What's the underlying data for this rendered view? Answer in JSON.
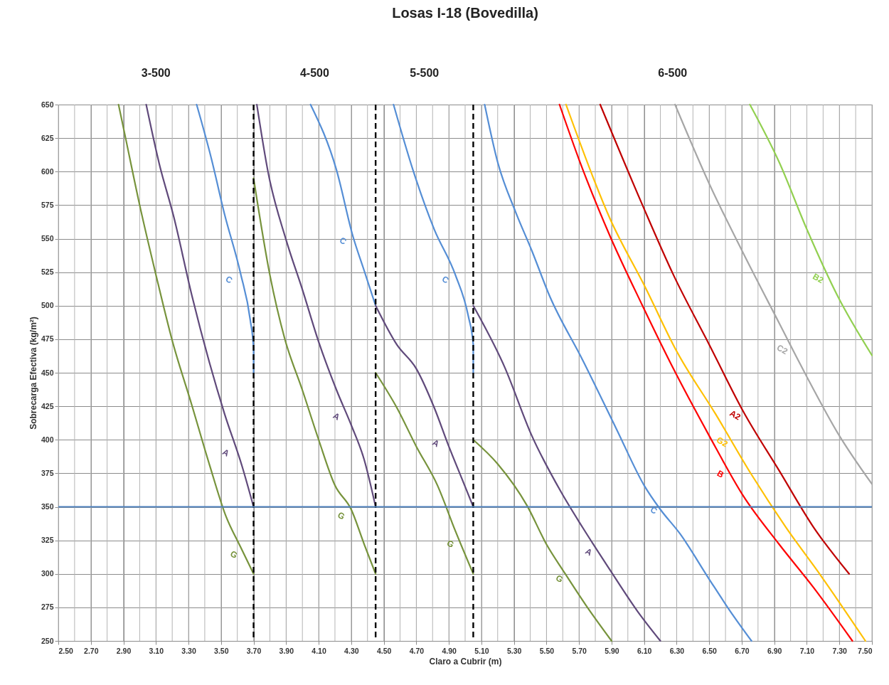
{
  "chart_data": {
    "type": "line",
    "title": "Losas I-18 (Bovedilla)",
    "xlabel": "Claro a Cubrir (m)",
    "ylabel": "Sobrecarga Efectiva (kg/m²)",
    "xlim": [
      2.5,
      7.5
    ],
    "ylim": [
      250,
      650
    ],
    "xticks": [
      {
        "value": 2.5,
        "label": "2.50"
      },
      {
        "value": 2.6,
        "label": null
      },
      {
        "value": 2.7,
        "label": "2.70"
      },
      {
        "value": 2.8,
        "label": null
      },
      {
        "value": 2.9,
        "label": "2.90"
      },
      {
        "value": 3.0,
        "label": null
      },
      {
        "value": 3.1,
        "label": "3.10"
      },
      {
        "value": 3.2,
        "label": null
      },
      {
        "value": 3.3,
        "label": "3.30"
      },
      {
        "value": 3.4,
        "label": null
      },
      {
        "value": 3.5,
        "label": "3.50"
      },
      {
        "value": 3.6,
        "label": null
      },
      {
        "value": 3.7,
        "label": "3.70"
      },
      {
        "value": 3.8,
        "label": null
      },
      {
        "value": 3.9,
        "label": "3.90"
      },
      {
        "value": 4.0,
        "label": null
      },
      {
        "value": 4.1,
        "label": "4.10"
      },
      {
        "value": 4.2,
        "label": null
      },
      {
        "value": 4.3,
        "label": "4.30"
      },
      {
        "value": 4.4,
        "label": null
      },
      {
        "value": 4.5,
        "label": "4.50"
      },
      {
        "value": 4.6,
        "label": null
      },
      {
        "value": 4.7,
        "label": "4.70"
      },
      {
        "value": 4.8,
        "label": null
      },
      {
        "value": 4.9,
        "label": "4.90"
      },
      {
        "value": 5.0,
        "label": null
      },
      {
        "value": 5.1,
        "label": "5.10"
      },
      {
        "value": 5.2,
        "label": null
      },
      {
        "value": 5.3,
        "label": "5.30"
      },
      {
        "value": 5.4,
        "label": null
      },
      {
        "value": 5.5,
        "label": "5.50"
      },
      {
        "value": 5.6,
        "label": null
      },
      {
        "value": 5.7,
        "label": "5.70"
      },
      {
        "value": 5.8,
        "label": null
      },
      {
        "value": 5.9,
        "label": "5.90"
      },
      {
        "value": 6.0,
        "label": null
      },
      {
        "value": 6.1,
        "label": "6.10"
      },
      {
        "value": 6.2,
        "label": null
      },
      {
        "value": 6.3,
        "label": "6.30"
      },
      {
        "value": 6.4,
        "label": null
      },
      {
        "value": 6.5,
        "label": "6.50"
      },
      {
        "value": 6.6,
        "label": null
      },
      {
        "value": 6.7,
        "label": "6.70"
      },
      {
        "value": 6.8,
        "label": null
      },
      {
        "value": 6.9,
        "label": "6.90"
      },
      {
        "value": 7.0,
        "label": null
      },
      {
        "value": 7.1,
        "label": "7.10"
      },
      {
        "value": 7.2,
        "label": null
      },
      {
        "value": 7.3,
        "label": "7.30"
      },
      {
        "value": 7.4,
        "label": null
      },
      {
        "value": 7.5,
        "label": "7.50"
      }
    ],
    "yticks": [
      250,
      275,
      300,
      325,
      350,
      375,
      400,
      425,
      450,
      475,
      500,
      525,
      550,
      575,
      600,
      625,
      650
    ],
    "grid": true,
    "series": [
      {
        "color": "#77933c",
        "x": [
          2.87,
          2.91,
          3.0,
          3.1,
          3.2,
          3.32,
          3.43,
          3.53,
          3.62,
          3.7
        ],
        "values": [
          650,
          627,
          575,
          523,
          474,
          426,
          381,
          343,
          320,
          300
        ]
      },
      {
        "color": "#604a7b",
        "x": [
          3.04,
          3.12,
          3.21,
          3.32,
          3.43,
          3.52,
          3.63,
          3.7
        ],
        "values": [
          650,
          606,
          566,
          508,
          457,
          420,
          380,
          350
        ]
      },
      {
        "color": "#558ed5",
        "x": [
          3.35,
          3.44,
          3.52,
          3.62,
          3.68,
          3.7,
          3.7
        ],
        "values": [
          650,
          610,
          569,
          524,
          489,
          468,
          450
        ]
      },
      {
        "color": "#77933c",
        "x": [
          3.7,
          3.8,
          3.89,
          4.0,
          4.1,
          4.2,
          4.3,
          4.38,
          4.45
        ],
        "values": [
          595,
          523,
          476,
          437,
          400,
          366,
          348,
          322,
          300
        ]
      },
      {
        "color": "#604a7b",
        "x": [
          3.72,
          3.79,
          3.9,
          4.0,
          4.1,
          4.21,
          4.3,
          4.38,
          4.45
        ],
        "values": [
          650,
          599,
          549,
          512,
          473,
          437,
          411,
          385,
          350
        ]
      },
      {
        "color": "#558ed5",
        "x": [
          4.05,
          4.21,
          4.31,
          4.38,
          4.45
        ],
        "values": [
          650,
          601,
          552,
          526,
          500
        ]
      },
      {
        "color": "#604a7b",
        "x": [
          4.45,
          4.58,
          4.7,
          4.81,
          4.9,
          4.98,
          5.05
        ],
        "values": [
          500,
          471,
          453,
          424,
          395,
          371,
          350
        ]
      },
      {
        "color": "#77933c",
        "x": [
          4.45,
          4.58,
          4.7,
          4.83,
          4.94,
          5.05
        ],
        "values": [
          450,
          424,
          395,
          366,
          332,
          300
        ]
      },
      {
        "color": "#558ed5",
        "x": [
          4.56,
          4.68,
          4.81,
          4.94,
          5.02,
          5.05,
          5.05
        ],
        "values": [
          650,
          601,
          557,
          523,
          492,
          471,
          450
        ]
      },
      {
        "color": "#77933c",
        "x": [
          5.05,
          5.2,
          5.38,
          5.5,
          5.61,
          5.74,
          5.9
        ],
        "values": [
          400,
          382,
          351,
          322,
          301,
          277,
          250
        ]
      },
      {
        "color": "#604a7b",
        "x": [
          5.05,
          5.24,
          5.41,
          5.59,
          5.72,
          5.89,
          6.06,
          6.2
        ],
        "values": [
          500,
          455,
          403,
          361,
          335,
          303,
          272,
          250
        ]
      },
      {
        "color": "#558ed5",
        "x": [
          5.12,
          5.2,
          5.31,
          5.41,
          5.52,
          5.72,
          5.93,
          6.1,
          6.2,
          6.32,
          6.5,
          6.63,
          6.76
        ],
        "values": [
          650,
          607,
          570,
          541,
          507,
          460,
          408,
          366,
          348,
          330,
          296,
          272,
          250
        ]
      },
      {
        "color": "#ff0000",
        "x": [
          5.58,
          5.7,
          5.89,
          6.09,
          6.28,
          6.5,
          6.71,
          6.93,
          7.14,
          7.38
        ],
        "values": [
          650,
          609,
          552,
          500,
          453,
          403,
          358,
          322,
          290,
          250
        ]
      },
      {
        "color": "#ffc000",
        "x": [
          5.62,
          5.89,
          6.11,
          6.3,
          6.54,
          6.76,
          6.97,
          7.19,
          7.46
        ],
        "values": [
          650,
          565,
          513,
          466,
          419,
          374,
          335,
          298,
          250
        ]
      },
      {
        "color": "#c00000",
        "x": [
          5.83,
          6.09,
          6.28,
          6.5,
          6.71,
          6.93,
          7.14,
          7.36
        ],
        "values": [
          650,
          575,
          523,
          471,
          421,
          377,
          335,
          300
        ]
      },
      {
        "color": "#a6a6a6",
        "x": [
          6.29,
          6.5,
          6.71,
          6.93,
          7.1,
          7.29,
          7.5
        ],
        "values": [
          650,
          591,
          539,
          487,
          447,
          405,
          367
        ]
      },
      {
        "color": "#92d050",
        "x": [
          6.75,
          6.93,
          7.1,
          7.29,
          7.5
        ],
        "values": [
          650,
          607,
          557,
          507,
          463
        ]
      }
    ],
    "ref_lines": [
      {
        "axis": "x",
        "value": 3.7,
        "color": "#000000",
        "line_style": "dashed"
      },
      {
        "axis": "x",
        "value": 4.45,
        "color": "#000000",
        "line_style": "dashed"
      },
      {
        "axis": "x",
        "value": 5.05,
        "color": "#000000",
        "line_style": "dashed"
      },
      {
        "axis": "y",
        "value": 350,
        "color": "#4f81bd",
        "line_style": "solid"
      }
    ],
    "annotations": [
      "3-500",
      "4-500",
      "5-500",
      "6-500",
      {
        "text": "C",
        "x": 3.64,
        "y": 513
      },
      {
        "text": "A",
        "x": 3.62,
        "y": 384
      },
      {
        "text": "G",
        "x": 3.67,
        "y": 308
      },
      {
        "text": "C",
        "x": 4.34,
        "y": 542
      },
      {
        "text": "A",
        "x": 4.3,
        "y": 411
      },
      {
        "text": "G",
        "x": 4.33,
        "y": 337
      },
      {
        "text": "C",
        "x": 4.97,
        "y": 513
      },
      {
        "text": "A",
        "x": 4.91,
        "y": 391
      },
      {
        "text": "G",
        "x": 5.0,
        "y": 316
      },
      {
        "text": "C",
        "x": 6.25,
        "y": 341
      },
      {
        "text": "A",
        "x": 5.85,
        "y": 310
      },
      {
        "text": "G",
        "x": 5.67,
        "y": 290
      },
      {
        "text": "B",
        "x": 6.66,
        "y": 368
      },
      {
        "text": "G2",
        "x": 6.67,
        "y": 392
      },
      {
        "text": "A2",
        "x": 6.75,
        "y": 412
      },
      {
        "text": "C2",
        "x": 7.04,
        "y": 461
      },
      {
        "text": "B2",
        "x": 7.26,
        "y": 514
      }
    ]
  }
}
